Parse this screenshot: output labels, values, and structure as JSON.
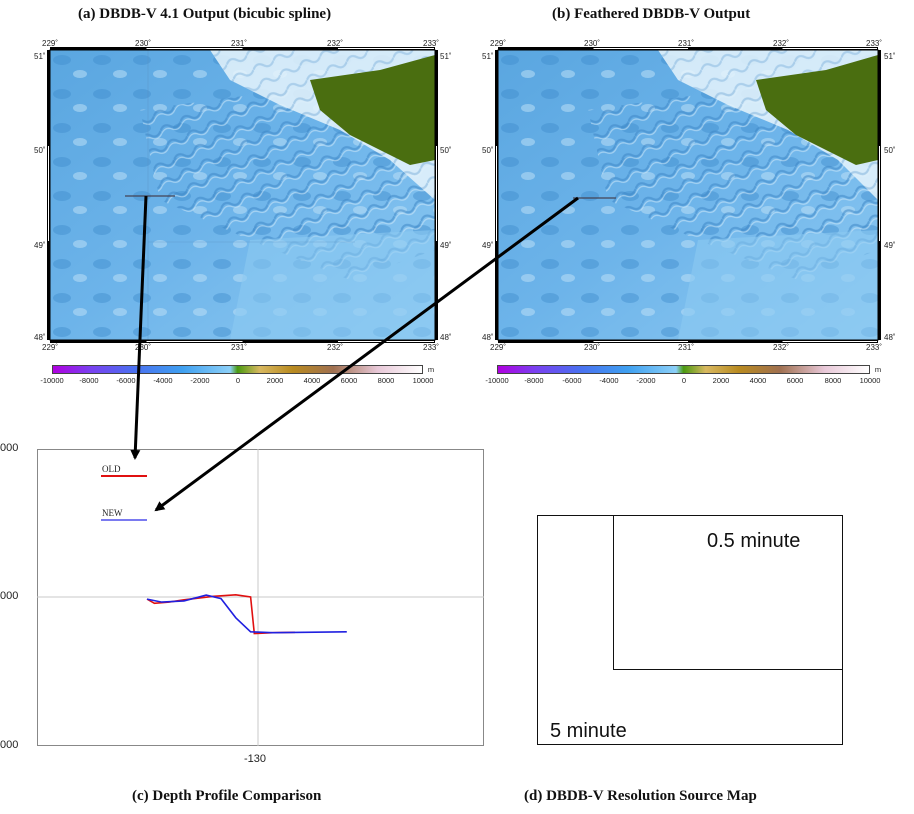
{
  "panels": {
    "a": {
      "caption": "(a) DBDB-V 4.1 Output (bicubic spline)",
      "lon_ticks": [
        "229˚",
        "230˚",
        "231˚",
        "232˚",
        "233˚"
      ],
      "lat_ticks": [
        "51˚",
        "50˚",
        "49˚",
        "48˚"
      ]
    },
    "b": {
      "caption": "(b) Feathered DBDB-V Output",
      "lon_ticks": [
        "229˚",
        "230˚",
        "231˚",
        "232˚",
        "233˚"
      ],
      "lat_ticks": [
        "51˚",
        "50˚",
        "49˚",
        "48˚"
      ]
    },
    "c": {
      "caption": "(c) Depth Profile Comparison"
    },
    "d": {
      "caption": "(d) DBDB-V Resolution Source Map"
    }
  },
  "colorbar": {
    "ticks": [
      "-10000",
      "-8000",
      "-6000",
      "-4000",
      "-2000",
      "0",
      "2000",
      "4000",
      "6000",
      "8000",
      "10000"
    ],
    "unit": "m"
  },
  "profile": {
    "y_ticks": [
      "000",
      "000",
      "000"
    ],
    "x_tick": "-130",
    "legend": [
      {
        "label": "OLD",
        "color": "#e01010"
      },
      {
        "label": "NEW",
        "color": "#7a7af0"
      }
    ]
  },
  "chart_data": {
    "type": "line",
    "title": "(c) Depth Profile Comparison",
    "xlabel": "",
    "ylabel": "",
    "x_ticks": [
      "-130"
    ],
    "y_ticks": [
      "000",
      "000",
      "000"
    ],
    "grid": true,
    "legend": "top-left",
    "series": [
      {
        "name": "OLD",
        "color": "#e01010",
        "points": [
          [
            -131.5,
            0.193
          ],
          [
            -131.4,
            0.217
          ],
          [
            -131.2,
            0.21
          ],
          [
            -131.0,
            0.197
          ],
          [
            -130.6,
            0.177
          ],
          [
            -130.3,
            0.168
          ],
          [
            -130.1,
            0.18
          ],
          [
            -130.05,
            0.39
          ],
          [
            -129.8,
            0.385
          ],
          [
            -129.5,
            0.383
          ]
        ]
      },
      {
        "name": "NEW",
        "color": "#2020e0",
        "points": [
          [
            -131.5,
            0.193
          ],
          [
            -131.3,
            0.21
          ],
          [
            -131.0,
            0.203
          ],
          [
            -130.7,
            0.17
          ],
          [
            -130.5,
            0.19
          ],
          [
            -130.3,
            0.3
          ],
          [
            -130.1,
            0.38
          ],
          [
            -129.8,
            0.385
          ],
          [
            -128.8,
            0.38
          ]
        ]
      }
    ]
  },
  "resolution": {
    "fine_label": "0.5 minute",
    "coarse_label": "5 minute"
  },
  "colors": {
    "ocean_deep": "#4a98d8",
    "ocean_mid": "#7ec0ee",
    "shelf": "#e8f4fb",
    "land": "#4a6e10",
    "arrow": "#000000"
  }
}
